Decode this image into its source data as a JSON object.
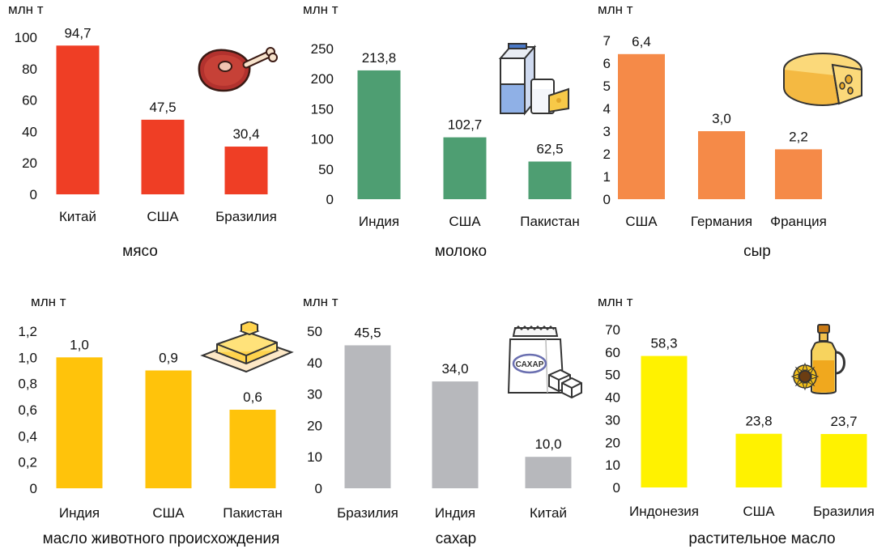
{
  "unit_label": "млн т",
  "chart_data": [
    {
      "type": "bar",
      "title": "мясо",
      "ylabel": "млн т",
      "categories": [
        "Китай",
        "США",
        "Бразилия"
      ],
      "values": [
        94.7,
        47.5,
        30.4
      ],
      "value_labels": [
        "94,7",
        "47,5",
        "30,4"
      ],
      "yticks": [
        "0",
        "20",
        "40",
        "60",
        "80",
        "100"
      ],
      "ylim": [
        0,
        100
      ],
      "color": "#ef3e25",
      "icon": "meat-icon",
      "grid": false,
      "legend": false
    },
    {
      "type": "bar",
      "title": "молоко",
      "ylabel": "млн т",
      "categories": [
        "Индия",
        "США",
        "Пакистан"
      ],
      "values": [
        213.8,
        102.7,
        62.5
      ],
      "value_labels": [
        "213,8",
        "102,7",
        "62,5"
      ],
      "yticks": [
        "0",
        "50",
        "100",
        "150",
        "200",
        "250"
      ],
      "ylim": [
        0,
        250
      ],
      "color": "#4e9e72",
      "icon": "milk-icon",
      "grid": false,
      "legend": false
    },
    {
      "type": "bar",
      "title": "сыр",
      "ylabel": "млн т",
      "categories": [
        "США",
        "Германия",
        "Франция"
      ],
      "values": [
        6.4,
        3.0,
        2.2
      ],
      "value_labels": [
        "6,4",
        "3,0",
        "2,2"
      ],
      "yticks": [
        "0",
        "1",
        "2",
        "3",
        "4",
        "5",
        "6",
        "7"
      ],
      "ylim": [
        0,
        7
      ],
      "color": "#f58a48",
      "icon": "cheese-icon",
      "grid": false,
      "legend": false
    },
    {
      "type": "bar",
      "title": "масло животного происхождения",
      "ylabel": "млн т",
      "categories": [
        "Индия",
        "США",
        "Пакистан"
      ],
      "values": [
        1.0,
        0.9,
        0.6
      ],
      "value_labels": [
        "1,0",
        "0,9",
        "0,6"
      ],
      "yticks": [
        "0",
        "0,2",
        "0,4",
        "0,6",
        "0,8",
        "1,0",
        "1,2"
      ],
      "ylim": [
        0,
        1.2
      ],
      "color": "#ffc30b",
      "icon": "butter-icon",
      "grid": false,
      "legend": false
    },
    {
      "type": "bar",
      "title": "сахар",
      "ylabel": "млн т",
      "categories": [
        "Бразилия",
        "Индия",
        "Китай"
      ],
      "values": [
        45.5,
        34.0,
        10.0
      ],
      "value_labels": [
        "45,5",
        "34,0",
        "10,0"
      ],
      "yticks": [
        "0",
        "10",
        "20",
        "30",
        "40",
        "50"
      ],
      "ylim": [
        0,
        50
      ],
      "color": "#b7b8bc",
      "icon": "sugar-bag-icon",
      "icon_text": "САХАР",
      "grid": false,
      "legend": false
    },
    {
      "type": "bar",
      "title": "растительное масло",
      "ylabel": "млн т",
      "categories": [
        "Индонезия",
        "США",
        "Бразилия"
      ],
      "values": [
        58.3,
        23.8,
        23.7
      ],
      "value_labels": [
        "58,3",
        "23,8",
        "23,7"
      ],
      "yticks": [
        "0",
        "10",
        "20",
        "30",
        "40",
        "50",
        "60",
        "70"
      ],
      "ylim": [
        0,
        70
      ],
      "color": "#fff200",
      "icon": "oil-bottle-icon",
      "grid": false,
      "legend": false
    }
  ]
}
